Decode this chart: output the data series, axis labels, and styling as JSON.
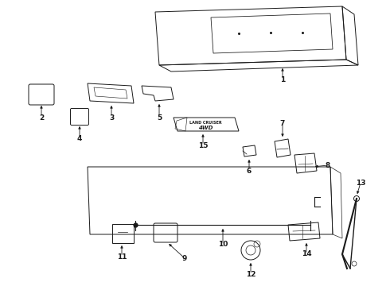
{
  "background_color": "#ffffff",
  "line_color": "#1a1a1a",
  "fig_width": 4.9,
  "fig_height": 3.6,
  "dpi": 100,
  "gray": "#888888",
  "light_gray": "#cccccc"
}
